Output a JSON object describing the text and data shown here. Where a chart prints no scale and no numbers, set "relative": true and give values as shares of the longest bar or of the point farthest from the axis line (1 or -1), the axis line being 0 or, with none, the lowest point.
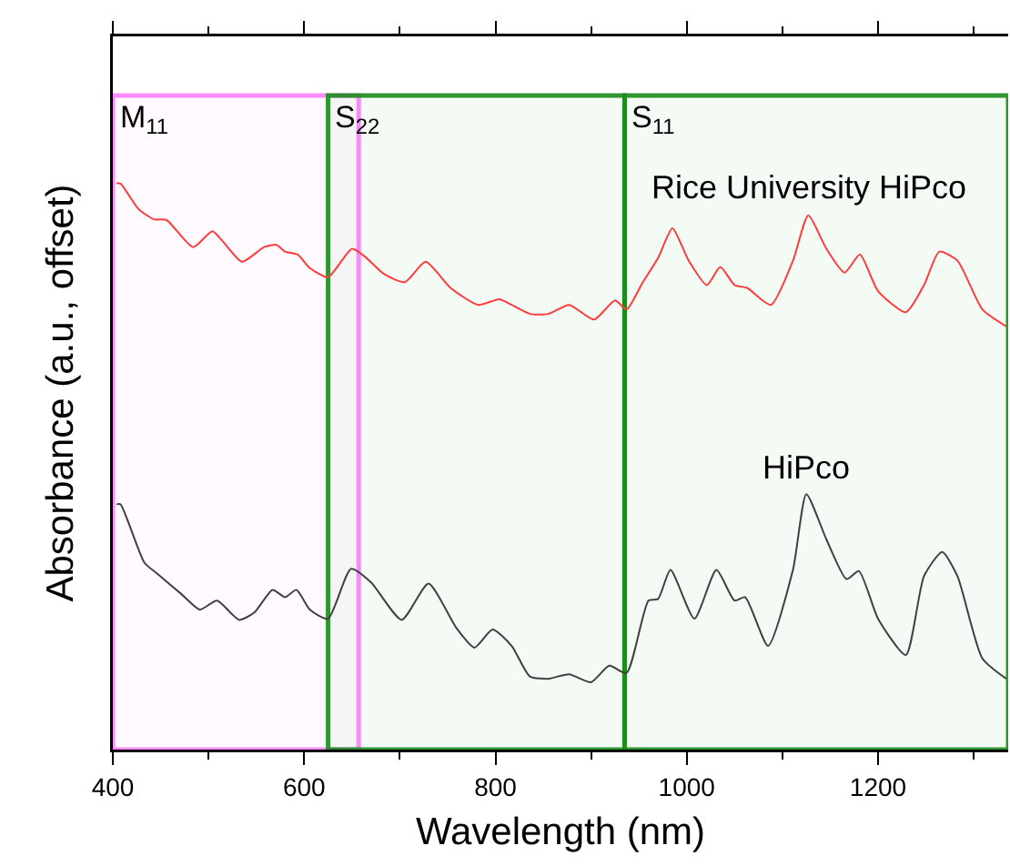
{
  "chart_data": {
    "type": "line",
    "xlabel": "Wavelength (nm)",
    "ylabel": "Absorbance (a.u., offset)",
    "relative": true,
    "xlim": [
      400,
      1336
    ],
    "xticks": [
      400,
      600,
      800,
      1000,
      1200
    ],
    "grid": false,
    "legend": false,
    "marker": "none",
    "line_style": "solid",
    "series": [
      {
        "name": "Rice University HiPco",
        "color": "#ff3b3b",
        "x": [
          404,
          408,
          427,
          443,
          456,
          484,
          504,
          516,
          535,
          558,
          571,
          580,
          593,
          606,
          625,
          650,
          663,
          683,
          705,
          727,
          753,
          782,
          804,
          817,
          836,
          855,
          877,
          903,
          925,
          937,
          954,
          970,
          985,
          1002,
          1021,
          1035,
          1050,
          1063,
          1088,
          1111,
          1127,
          1146,
          1165,
          1181,
          1200,
          1229,
          1248,
          1264,
          1283,
          1309,
          1334
        ],
        "values": [
          1,
          0.999,
          0.954,
          0.936,
          0.935,
          0.887,
          0.915,
          0.895,
          0.861,
          0.887,
          0.891,
          0.879,
          0.874,
          0.85,
          0.834,
          0.884,
          0.871,
          0.84,
          0.825,
          0.861,
          0.815,
          0.785,
          0.795,
          0.785,
          0.769,
          0.769,
          0.785,
          0.759,
          0.793,
          0.777,
          0.825,
          0.868,
          0.92,
          0.863,
          0.82,
          0.852,
          0.82,
          0.815,
          0.785,
          0.863,
          0.943,
          0.884,
          0.842,
          0.874,
          0.809,
          0.772,
          0.82,
          0.879,
          0.863,
          0.777,
          0.747
        ]
      },
      {
        "name": "HiPco",
        "color": "#404040",
        "x": [
          404,
          408,
          433,
          446,
          472,
          491,
          509,
          532,
          548,
          567,
          580,
          592,
          606,
          625,
          649,
          670,
          702,
          730,
          759,
          778,
          797,
          817,
          836,
          855,
          877,
          900,
          919,
          937,
          960,
          970,
          983,
          1008,
          1031,
          1050,
          1061,
          1085,
          1111,
          1125,
          1146,
          1167,
          1180,
          1200,
          1229,
          1248,
          1267,
          1283,
          1309,
          1334
        ],
        "values": [
          0.433,
          0.433,
          0.33,
          0.311,
          0.274,
          0.247,
          0.263,
          0.229,
          0.242,
          0.282,
          0.269,
          0.282,
          0.247,
          0.231,
          0.319,
          0.295,
          0.229,
          0.293,
          0.215,
          0.18,
          0.212,
          0.183,
          0.129,
          0.125,
          0.133,
          0.119,
          0.148,
          0.135,
          0.263,
          0.266,
          0.317,
          0.231,
          0.317,
          0.263,
          0.269,
          0.183,
          0.317,
          0.451,
          0.371,
          0.301,
          0.315,
          0.231,
          0.167,
          0.306,
          0.349,
          0.306,
          0.161,
          0.125
        ]
      }
    ],
    "bands": [
      {
        "axis": "x",
        "from": 400,
        "to": 657,
        "label": "M$_{11}$",
        "color": "#ff80ff"
      },
      {
        "axis": "x",
        "from": 625,
        "to": 935,
        "label": "S$_{22}$",
        "color": "#1a8c1a"
      },
      {
        "axis": "x",
        "from": 935,
        "to": 1336,
        "label": "S$_{11}$",
        "color": "#1a8c1a"
      }
    ]
  }
}
